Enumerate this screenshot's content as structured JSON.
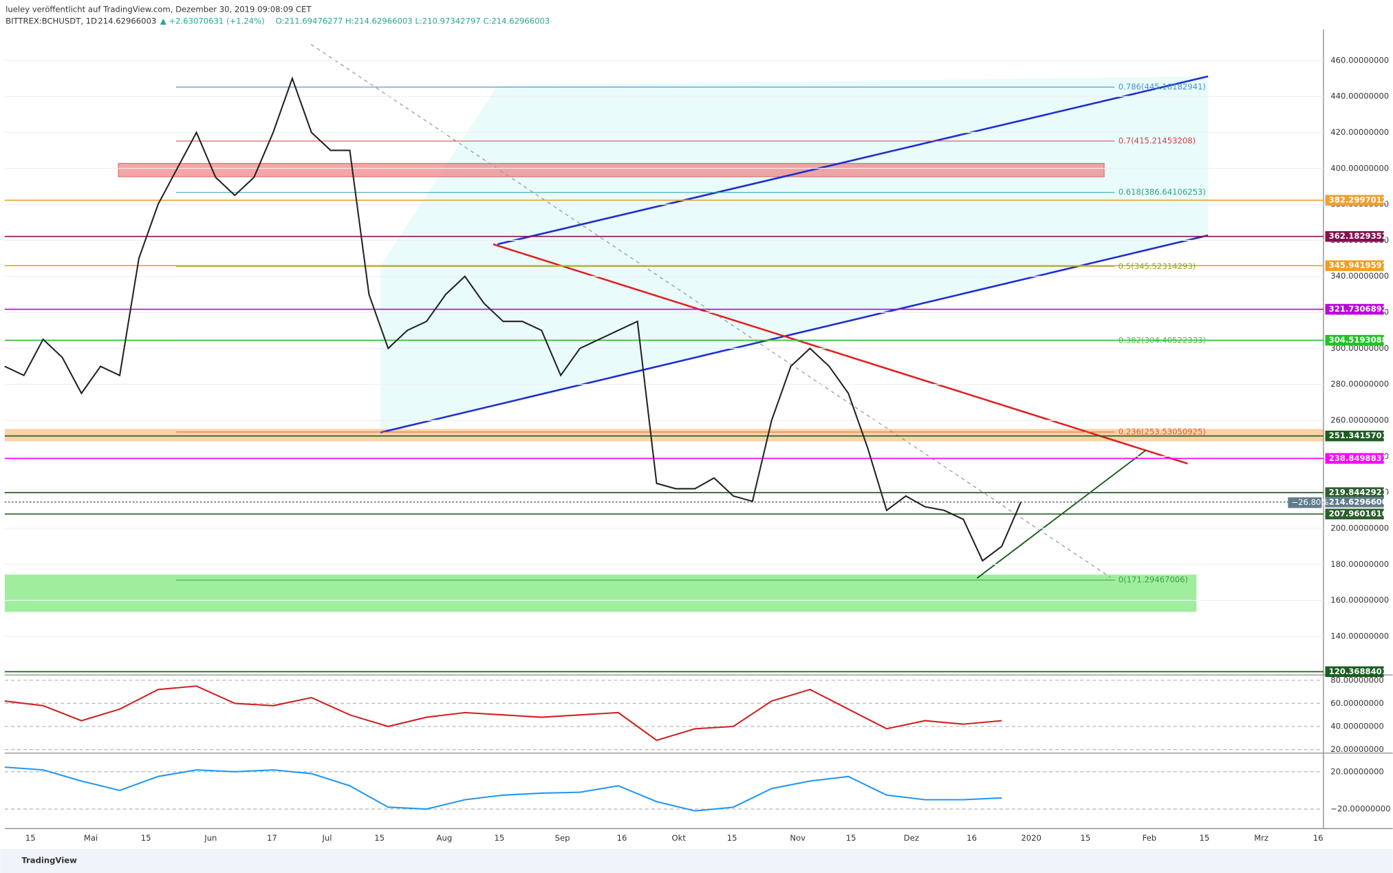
{
  "header": {
    "publisher": "lueley veröffentlicht auf TradingView.com, Dezember 30, 2019 09:08:09 CET",
    "symbol": "BITTREX:BCHUSDT, 1D",
    "last": "214.62966003",
    "change": "▲ +2.63070631 (+1.24%)",
    "ohlc": "O:211.69476277 H:214.62966003 L:210.97342797 C:214.62966003"
  },
  "chart_data": [
    {
      "type": "line",
      "name": "price",
      "color": "#222222",
      "values": [
        290,
        285,
        305,
        295,
        275,
        290,
        285,
        350,
        380,
        400,
        420,
        395,
        385,
        395,
        420,
        450,
        420,
        410,
        410,
        330,
        300,
        310,
        315,
        330,
        340,
        325,
        315,
        315,
        310,
        285,
        300,
        305,
        310,
        315,
        225,
        222,
        222,
        228,
        218,
        215,
        260,
        290,
        300,
        290,
        275,
        245,
        210,
        218,
        212,
        210,
        205,
        182,
        190,
        214.62966003
      ],
      "ylim": [
        120,
        460
      ],
      "yticks": [
        {
          "value": 140,
          "label": "140.00000000"
        },
        {
          "value": 160,
          "label": "160.00000000"
        },
        {
          "value": 180,
          "label": "180.00000000"
        },
        {
          "value": 200,
          "label": "200.00000000"
        },
        {
          "value": 220,
          "label": "220.00000000"
        },
        {
          "value": 240,
          "label": "240.00000000"
        },
        {
          "value": 260,
          "label": "260.00000000"
        },
        {
          "value": 280,
          "label": "280.00000000"
        },
        {
          "value": 300,
          "label": "300.00000000"
        },
        {
          "value": 320,
          "label": "320.00000000"
        },
        {
          "value": 340,
          "label": "340.00000000"
        },
        {
          "value": 360,
          "label": "360.00000000"
        },
        {
          "value": 380,
          "label": "380.00000000"
        },
        {
          "value": 400,
          "label": "400.00000000"
        },
        {
          "value": 420,
          "label": "420.00000000"
        },
        {
          "value": 440,
          "label": "440.00000000"
        },
        {
          "value": 460,
          "label": "460.00000000"
        }
      ],
      "levels": [
        {
          "value": 382.29970122,
          "color": "#f0a030"
        },
        {
          "value": 362.18293524,
          "color": "#880e4f"
        },
        {
          "value": 345.94195974,
          "color": "#f59d1b"
        },
        {
          "value": 321.73068929,
          "color": "#c000e0"
        },
        {
          "value": 304.51930882,
          "color": "#22c322"
        },
        {
          "value": 251.34157013,
          "color": "#1b5e20"
        },
        {
          "value": 238.84988315,
          "color": "#ff00ff"
        },
        {
          "value": 219.84429212,
          "color": "#2e5e2e"
        },
        {
          "value": 214.62966003,
          "color": "#607d8b"
        },
        {
          "value": 207.96016103,
          "color": "#2e5e2e"
        },
        {
          "value": 120.36884016,
          "color": "#1b5e20"
        }
      ],
      "fib": [
        {
          "value": 445.18182941,
          "label": "0.786(445.18182941)",
          "color": "#4a90c8"
        },
        {
          "value": 415.21453208,
          "label": "0.7(415.21453208)",
          "color": "#d04040"
        },
        {
          "value": 386.64106253,
          "label": "0.618(386.64106253)",
          "color": "#30a090"
        },
        {
          "value": 345.52314293,
          "label": "0.5(345.52314293)",
          "color": "#8ab020"
        },
        {
          "value": 304.40522333,
          "label": "0.382(304.40522333)",
          "color": "#40c040"
        },
        {
          "value": 253.53050925,
          "label": "0.236(253.53050925)",
          "color": "#e06030"
        },
        {
          "value": 171.29467006,
          "label": "0(171.29467006)",
          "color": "#40a040"
        }
      ],
      "badge": "−26.80%"
    },
    {
      "type": "line",
      "name": "rsi",
      "color": "#d02020",
      "values": [
        62,
        58,
        45,
        55,
        72,
        75,
        60,
        58,
        65,
        50,
        40,
        48,
        52,
        50,
        48,
        50,
        52,
        28,
        38,
        40,
        62,
        72,
        55,
        38,
        45,
        42,
        45
      ],
      "ylim": [
        20,
        80
      ],
      "yticks": [
        {
          "value": 20,
          "label": "20.00000000"
        },
        {
          "value": 40,
          "label": "40.00000000"
        },
        {
          "value": 60,
          "label": "60.00000000"
        },
        {
          "value": 80,
          "label": "80.00000000"
        }
      ]
    },
    {
      "type": "line",
      "name": "macd",
      "color": "#2196f3",
      "values": [
        25,
        22,
        10,
        0,
        15,
        22,
        20,
        22,
        18,
        5,
        -18,
        -20,
        -10,
        -5,
        -3,
        -2,
        5,
        -12,
        -22,
        -18,
        2,
        10,
        15,
        -5,
        -10,
        -10,
        -8
      ],
      "ylim": [
        -40,
        40
      ],
      "yticks": [
        {
          "value": 20,
          "label": "20.00000000"
        },
        {
          "value": -20,
          "label": "−20.00000000"
        }
      ]
    }
  ],
  "time_axis": [
    "15",
    "Mai",
    "15",
    "Jun",
    "17",
    "Jul",
    "15",
    "Aug",
    "15",
    "Sep",
    "16",
    "Okt",
    "15",
    "Nov",
    "15",
    "Dez",
    "16",
    "2020",
    "15",
    "Feb",
    "15",
    "Mrz",
    "16"
  ],
  "footer": "TradingView"
}
